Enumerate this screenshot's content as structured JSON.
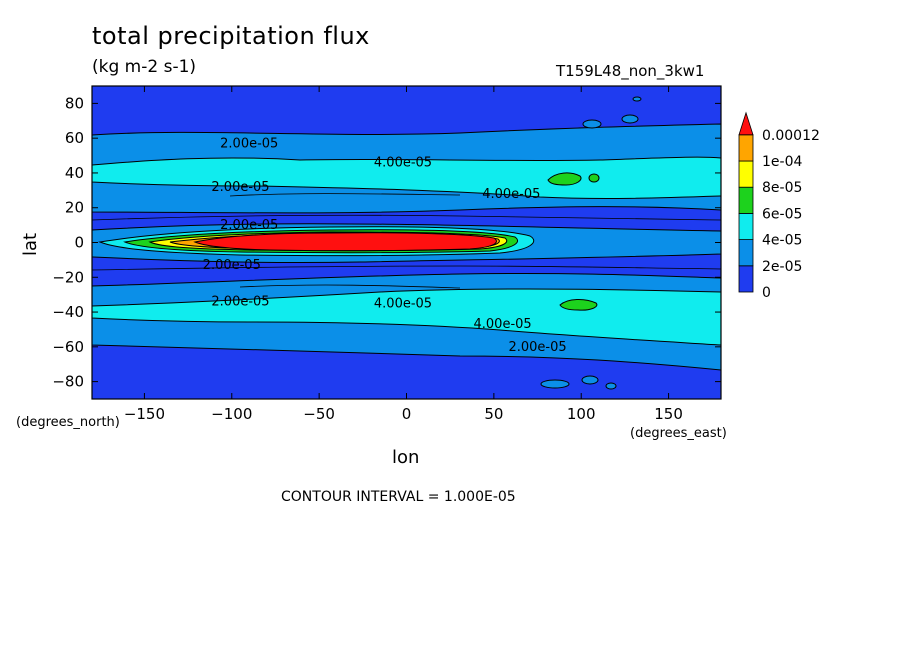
{
  "header": {
    "title": "total precipitation flux",
    "units": "(kg m-2 s-1)",
    "run_id": "T159L48_non_3kw1"
  },
  "axes": {
    "ylabel": "lat",
    "xlabel": "lon",
    "yunit": "(degrees_north)",
    "xunit": "(degrees_east)"
  },
  "footer": {
    "contour_interval": "CONTOUR INTERVAL = 1.000E-05"
  },
  "chart_data": {
    "type": "heatmap",
    "title": "total precipitation flux",
    "subtitle": "(kg m-2 s-1)",
    "xlabel": "lon",
    "ylabel": "lat",
    "xlim": [
      -180,
      180
    ],
    "ylim": [
      -90,
      90
    ],
    "xticks": [
      -150,
      -100,
      -50,
      0,
      50,
      100,
      150
    ],
    "yticks": [
      -80,
      -60,
      -40,
      -20,
      0,
      20,
      40,
      60,
      80
    ],
    "colorbar": {
      "levels": [
        0,
        2e-05,
        4e-05,
        6e-05,
        8e-05,
        0.0001,
        0.00012
      ],
      "labels": [
        "0",
        "2e-05",
        "4e-05",
        "6e-05",
        "8e-05",
        "1e-04",
        "0.00012"
      ],
      "colors": [
        "#1f3cf0",
        "#0b8fe8",
        "#10ecee",
        "#1dd21d",
        "#ffff00",
        "#ffa500",
        "#ff1010"
      ]
    },
    "contour_labels": [
      {
        "text": "2.00e-05",
        "lon": -90,
        "lat": 57
      },
      {
        "text": "4.00e-05",
        "lon": -2,
        "lat": 46
      },
      {
        "text": "2.00e-05",
        "lon": -95,
        "lat": 32
      },
      {
        "text": "4.00e-05",
        "lon": 60,
        "lat": 28
      },
      {
        "text": "2.00e-05",
        "lon": -90,
        "lat": 10
      },
      {
        "text": "2.00e-05",
        "lon": -100,
        "lat": -13
      },
      {
        "text": "2.00e-05",
        "lon": -95,
        "lat": -34
      },
      {
        "text": "4.00e-05",
        "lon": -2,
        "lat": -35
      },
      {
        "text": "4.00e-05",
        "lon": 55,
        "lat": -47
      },
      {
        "text": "2.00e-05",
        "lon": 75,
        "lat": -60
      }
    ],
    "regions": {
      "itcz": {
        "lon_range": [
          -145,
          65
        ],
        "lat_range": [
          -5,
          5
        ],
        "max_value": 0.00012
      },
      "storm_track_north": {
        "lon_range": [
          -150,
          180
        ],
        "lat_range": [
          25,
          55
        ],
        "max_value": 6e-05
      },
      "storm_track_south": {
        "lon_range": [
          -150,
          180
        ],
        "lat_range": [
          -55,
          -25
        ],
        "max_value": 6e-05
      }
    }
  }
}
